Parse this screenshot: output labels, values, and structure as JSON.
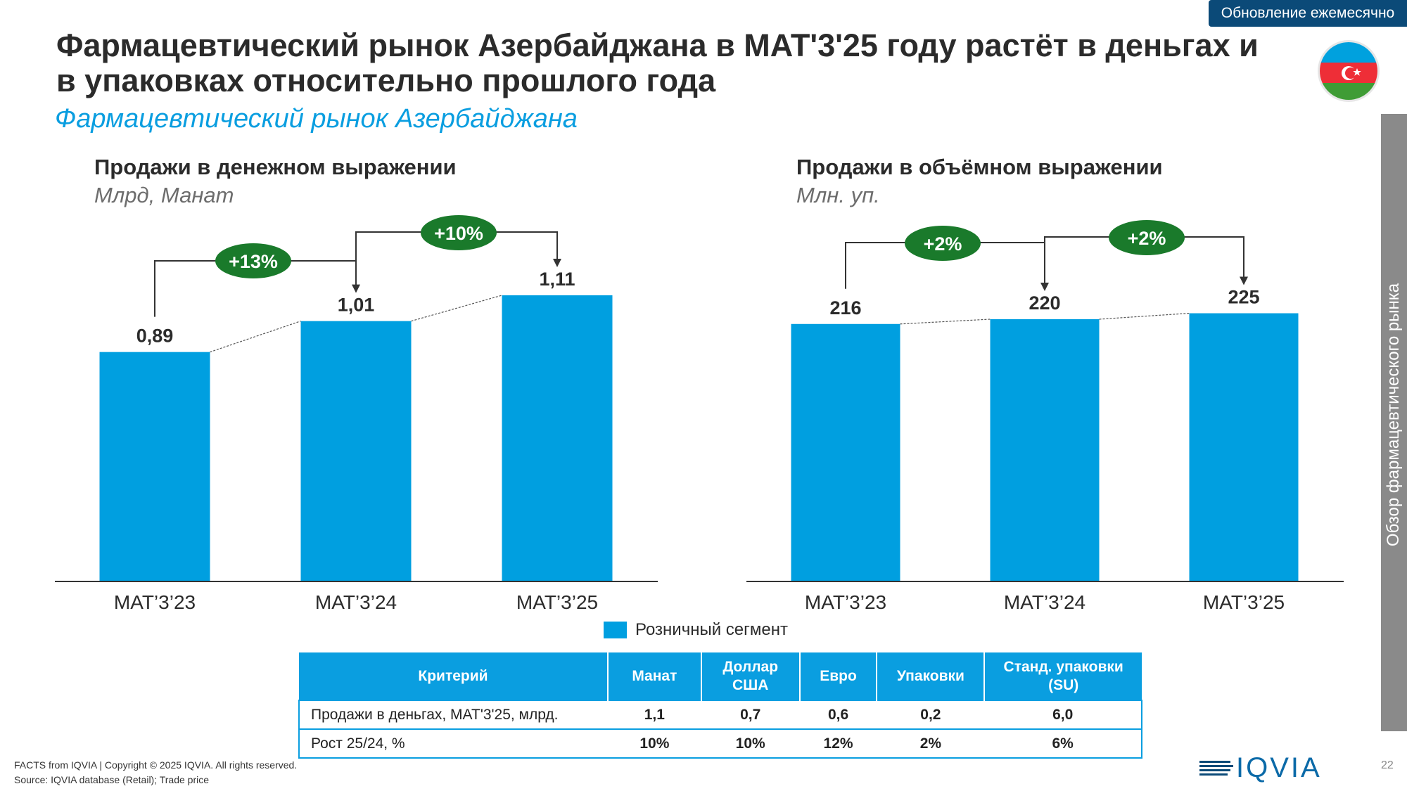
{
  "badge": "Обновление ежемесячно",
  "title": "Фармацевтический рынок Азербайджана в MAT'3'25 году растёт в деньгах и в упаковках относительно прошлого года",
  "subtitle": "Фармацевтический рынок Азербайджана",
  "side_label": "Обзор фармацевтического рынка",
  "colors": {
    "bar": "#009fe0",
    "growth_badge": "#1a7a2b",
    "header": "#0a9ee0",
    "brand": "#0b4a78"
  },
  "chart_data": [
    {
      "type": "bar",
      "title": "Продажи в денежном выражении",
      "ylabel": "Млрд, Манат",
      "categories": [
        "MAT’3’23",
        "MAT’3’24",
        "MAT’3’25"
      ],
      "values": [
        0.89,
        1.01,
        1.11
      ],
      "value_labels": [
        "0,89",
        "1,01",
        "1,11"
      ],
      "growth": [
        "+13%",
        "+10%"
      ],
      "ylim": [
        0,
        1.2
      ]
    },
    {
      "type": "bar",
      "title": "Продажи в объёмном выражении",
      "ylabel": "Млн. уп.",
      "categories": [
        "MAT’3’23",
        "MAT’3’24",
        "MAT’3’25"
      ],
      "values": [
        216,
        220,
        225
      ],
      "value_labels": [
        "216",
        "220",
        "225"
      ],
      "growth": [
        "+2%",
        "+2%"
      ],
      "ylim": [
        0,
        243
      ]
    }
  ],
  "legend": {
    "label": "Розничный сегмент"
  },
  "table": {
    "headers": [
      "Критерий",
      "Манат",
      "Доллар США",
      "Евро",
      "Упаковки",
      "Станд. упаковки (SU)"
    ],
    "rows": [
      [
        "Продажи в деньгах,  MAT'3'25, млрд.",
        "1,1",
        "0,7",
        "0,6",
        "0,2",
        "6,0"
      ],
      [
        "Рост 25/24, %",
        "10%",
        "10%",
        "12%",
        "2%",
        "6%"
      ]
    ]
  },
  "footer": {
    "copyright": "FACTS from IQVIA | Copyright © 2025 IQVIA. All rights reserved.",
    "source": "Source: IQVIA database (Retail); Trade price"
  },
  "logo_text": "IQVIA",
  "page_number": "22"
}
